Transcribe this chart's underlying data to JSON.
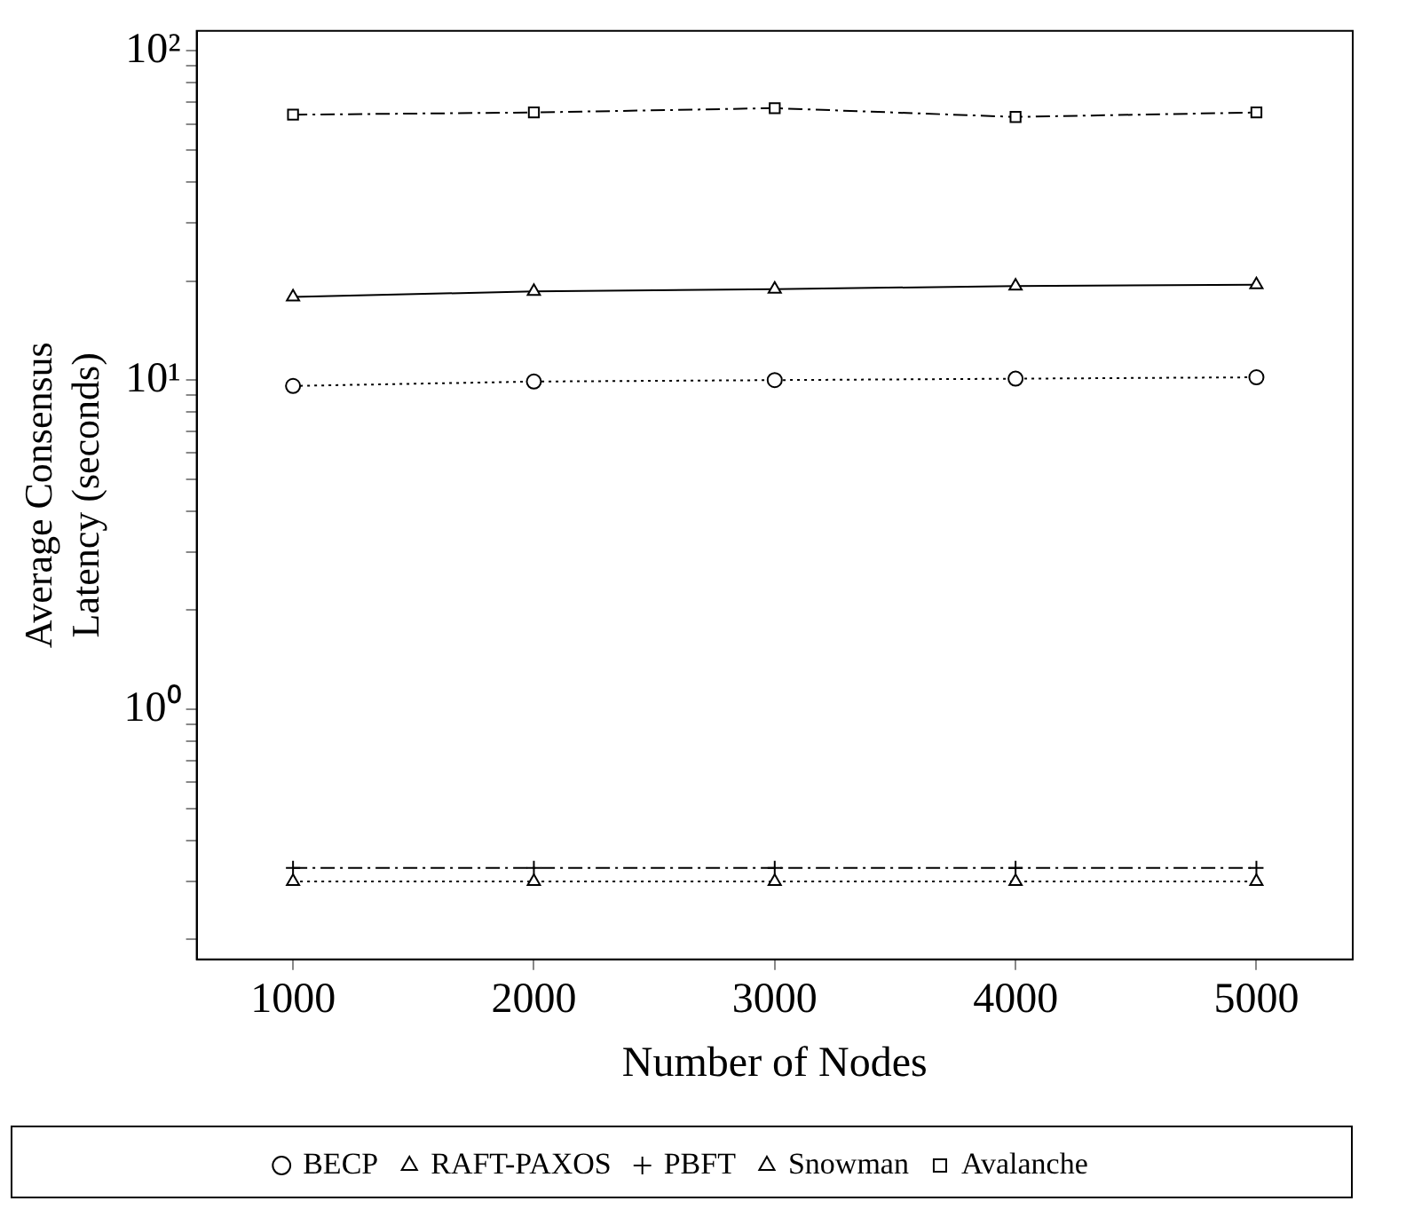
{
  "chart_data": {
    "type": "line",
    "xlabel": "Number of Nodes",
    "ylabel": "Average Consensus Latency (seconds)",
    "x": [
      1000,
      2000,
      3000,
      4000,
      5000
    ],
    "series": [
      {
        "name": "BECP",
        "color": "#000000",
        "values": [
          9.6,
          9.9,
          10.0,
          10.1,
          10.2
        ],
        "marker": "circle",
        "line_style": "dotted"
      },
      {
        "name": "RAFT-PAXOS",
        "color": "#000000",
        "values": [
          0.3,
          0.3,
          0.3,
          0.3,
          0.3
        ],
        "marker": "triangle",
        "line_style": "dotted"
      },
      {
        "name": "PBFT",
        "color": "#000000",
        "values": [
          0.33,
          0.33,
          0.33,
          0.33,
          0.33
        ],
        "marker": "cross",
        "line_style": "dashed"
      },
      {
        "name": "Snowman",
        "color": "#000000",
        "values": [
          17.9,
          18.6,
          18.9,
          19.3,
          19.5
        ],
        "marker": "triangle",
        "line_style": "solid"
      },
      {
        "name": "Avalanche",
        "color": "#000000",
        "values": [
          64,
          65,
          67,
          63,
          65
        ],
        "marker": "square",
        "line_style": "dashed"
      }
    ],
    "log": "y",
    "xlim": [
      600,
      5400
    ],
    "xticks": [
      1000,
      2000,
      3000,
      4000,
      5000
    ],
    "ylim": [
      0.174,
      115
    ],
    "yticks": [
      {
        "value": 0.2,
        "label": null
      },
      {
        "value": 0.3,
        "label": null
      },
      {
        "value": 0.4,
        "label": null
      },
      {
        "value": 0.5,
        "label": null
      },
      {
        "value": 0.6,
        "label": null
      },
      {
        "value": 0.7,
        "label": null
      },
      {
        "value": 0.8,
        "label": null
      },
      {
        "value": 0.9,
        "label": null
      },
      {
        "value": 1,
        "label": "10⁰"
      },
      {
        "value": 2,
        "label": null
      },
      {
        "value": 3,
        "label": null
      },
      {
        "value": 4,
        "label": null
      },
      {
        "value": 5,
        "label": null
      },
      {
        "value": 6,
        "label": null
      },
      {
        "value": 7,
        "label": null
      },
      {
        "value": 8,
        "label": null
      },
      {
        "value": 9,
        "label": null
      },
      {
        "value": 10,
        "label": "10¹"
      },
      {
        "value": 20,
        "label": null
      },
      {
        "value": 30,
        "label": null
      },
      {
        "value": 40,
        "label": null
      },
      {
        "value": 50,
        "label": null
      },
      {
        "value": 60,
        "label": null
      },
      {
        "value": 70,
        "label": null
      },
      {
        "value": 80,
        "label": null
      },
      {
        "value": 90,
        "label": null
      },
      {
        "value": 100,
        "label": "10²"
      }
    ],
    "grid": false,
    "legend": "bottom"
  }
}
